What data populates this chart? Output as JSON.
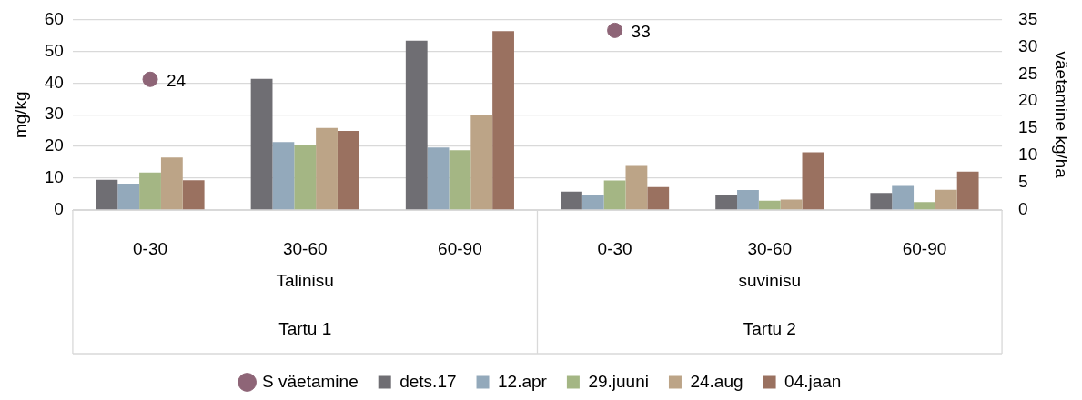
{
  "chart_data": {
    "type": "bar",
    "ylabel": "mg/kg",
    "y2label": "väetamine kg/ha",
    "categories": [
      "0-30",
      "30-60",
      "60-90",
      "0-30",
      "30-60",
      "60-90"
    ],
    "annotations": [
      "Talinisu",
      "suvinisu",
      "Tartu 1",
      "Tartu 2"
    ],
    "series": [
      {
        "name": "dets.17",
        "color": "#6f6e73",
        "values": [
          9.5,
          41.3,
          53.3,
          5.8,
          4.8,
          5.4
        ]
      },
      {
        "name": "12.apr",
        "color": "#93a9bb",
        "values": [
          8.3,
          21.4,
          19.7,
          4.8,
          6.3,
          7.6
        ]
      },
      {
        "name": "29.juuni",
        "color": "#a4b684",
        "values": [
          11.8,
          20.3,
          18.8,
          9.3,
          2.9,
          2.5
        ]
      },
      {
        "name": "24.aug",
        "color": "#bca487",
        "values": [
          16.5,
          25.8,
          29.8,
          13.9,
          3.3,
          6.4
        ]
      },
      {
        "name": "04.jaan",
        "color": "#9a7160",
        "values": [
          9.4,
          24.9,
          56.3,
          7.2,
          18.2,
          12.1
        ]
      },
      {
        "name": "S väetamine",
        "type": "scatter",
        "axis": "y2",
        "marker": "circle",
        "color": "#8e6577",
        "values": [
          24,
          null,
          null,
          33,
          null,
          null
        ],
        "value_labels": [
          "24",
          null,
          null,
          "33",
          null,
          null
        ]
      }
    ],
    "ylim": [
      0,
      60
    ],
    "yticks": [
      0,
      10,
      20,
      30,
      40,
      50,
      60
    ],
    "y2lim": [
      0,
      35
    ],
    "y2ticks": [
      0,
      5,
      10,
      15,
      20,
      25,
      30,
      35
    ],
    "grid": "y",
    "legend": "bottom"
  }
}
